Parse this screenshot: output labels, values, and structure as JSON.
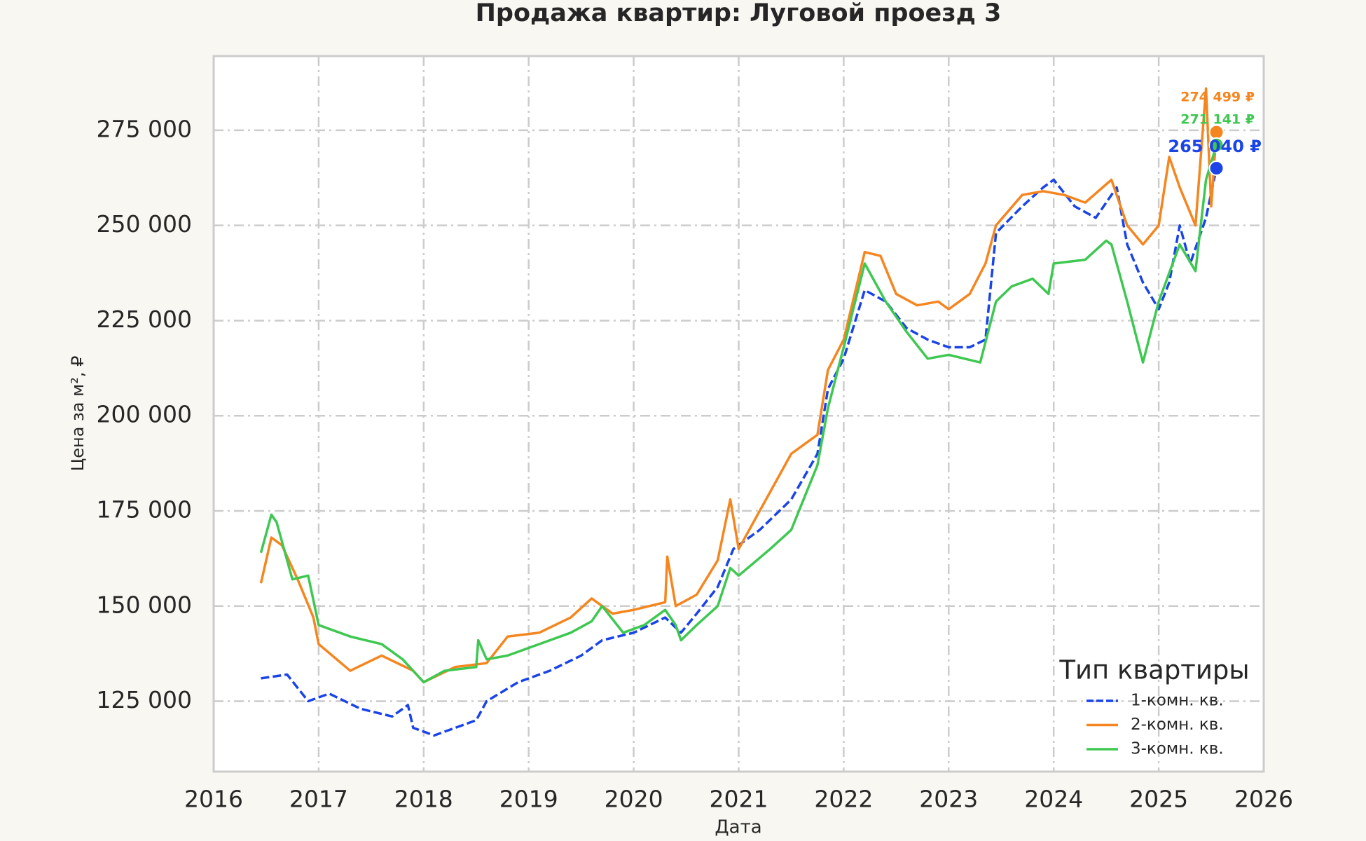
{
  "chart_data": {
    "type": "line",
    "title": "Продажа квартир: Луговой проезд 3",
    "x_label": "Дата",
    "y_label": "Цена за м², ₽",
    "xlim": [
      2016,
      2026
    ],
    "xticks": [
      2016,
      2017,
      2018,
      2019,
      2020,
      2021,
      2022,
      2023,
      2024,
      2025,
      2026
    ],
    "ylim": [
      106500,
      294500
    ],
    "yticks": [
      {
        "value": 125000,
        "label": "125 000"
      },
      {
        "value": 150000,
        "label": "150 000"
      },
      {
        "value": 175000,
        "label": "175 000"
      },
      {
        "value": 200000,
        "label": "200 000"
      },
      {
        "value": 225000,
        "label": "225 000"
      },
      {
        "value": 250000,
        "label": "250 000"
      },
      {
        "value": 275000,
        "label": "275 000"
      }
    ],
    "grid": true,
    "legend_title": "Тип квартиры",
    "legend_position": "lower right",
    "series": [
      {
        "name": "1-комн. кв.",
        "color": "#1a44e8",
        "linestyle": "dashed",
        "x": [
          2016.45,
          2016.7,
          2016.9,
          2017.1,
          2017.4,
          2017.7,
          2017.85,
          2017.9,
          2018.1,
          2018.3,
          2018.5,
          2018.6,
          2018.9,
          2019.2,
          2019.5,
          2019.7,
          2020.0,
          2020.3,
          2020.45,
          2020.6,
          2020.8,
          2020.95,
          2021.2,
          2021.5,
          2021.75,
          2021.85,
          2022.0,
          2022.2,
          2022.4,
          2022.6,
          2022.8,
          2023.0,
          2023.2,
          2023.35,
          2023.45,
          2023.7,
          2023.9,
          2024.0,
          2024.2,
          2024.4,
          2024.6,
          2024.7,
          2024.85,
          2025.0,
          2025.1,
          2025.2,
          2025.3,
          2025.45,
          2025.55
        ],
        "values": [
          131000,
          132000,
          125000,
          127000,
          123000,
          121000,
          124000,
          118000,
          116000,
          118000,
          120000,
          125000,
          130000,
          133000,
          137000,
          141000,
          143000,
          147000,
          143000,
          148000,
          155000,
          165000,
          170000,
          178000,
          190000,
          207000,
          215000,
          233000,
          230000,
          223000,
          220000,
          218000,
          218000,
          220000,
          248000,
          255000,
          260000,
          262000,
          255000,
          252000,
          260000,
          245000,
          235000,
          228000,
          235000,
          250000,
          240000,
          252000,
          265040
        ]
      },
      {
        "name": "2-комн. кв.",
        "color": "#f5861f",
        "linestyle": "solid",
        "x": [
          2016.45,
          2016.55,
          2016.65,
          2016.8,
          2016.95,
          2017.0,
          2017.3,
          2017.6,
          2017.9,
          2018.0,
          2018.3,
          2018.6,
          2018.8,
          2019.1,
          2019.4,
          2019.6,
          2019.8,
          2020.0,
          2020.3,
          2020.32,
          2020.4,
          2020.6,
          2020.8,
          2020.92,
          2021.0,
          2021.3,
          2021.5,
          2021.75,
          2021.85,
          2022.0,
          2022.2,
          2022.35,
          2022.5,
          2022.7,
          2022.9,
          2023.0,
          2023.2,
          2023.35,
          2023.45,
          2023.7,
          2023.9,
          2024.1,
          2024.3,
          2024.55,
          2024.7,
          2024.85,
          2025.0,
          2025.1,
          2025.2,
          2025.35,
          2025.45,
          2025.5,
          2025.55
        ],
        "values": [
          156000,
          168000,
          166000,
          157000,
          147000,
          140000,
          133000,
          137000,
          133000,
          130000,
          134000,
          135000,
          142000,
          143000,
          147000,
          152000,
          148000,
          149000,
          151000,
          163000,
          150000,
          153000,
          162000,
          178000,
          165000,
          180000,
          190000,
          195000,
          212000,
          220000,
          243000,
          242000,
          232000,
          229000,
          230000,
          228000,
          232000,
          240000,
          250000,
          258000,
          259000,
          258000,
          256000,
          262000,
          250000,
          245000,
          250000,
          268000,
          260000,
          250000,
          286000,
          255000,
          274499
        ]
      },
      {
        "name": "3-комн. кв.",
        "color": "#3ec851",
        "linestyle": "solid",
        "x": [
          2016.45,
          2016.55,
          2016.6,
          2016.75,
          2016.9,
          2017.0,
          2017.3,
          2017.6,
          2017.8,
          2018.0,
          2018.2,
          2018.5,
          2018.52,
          2018.6,
          2018.8,
          2019.1,
          2019.4,
          2019.6,
          2019.7,
          2019.9,
          2020.1,
          2020.3,
          2020.4,
          2020.45,
          2020.6,
          2020.8,
          2020.92,
          2021.0,
          2021.3,
          2021.5,
          2021.75,
          2021.85,
          2022.0,
          2022.2,
          2022.4,
          2022.6,
          2022.8,
          2023.0,
          2023.3,
          2023.45,
          2023.6,
          2023.8,
          2023.95,
          2024.0,
          2024.3,
          2024.5,
          2024.55,
          2024.7,
          2024.85,
          2025.0,
          2025.2,
          2025.35,
          2025.45,
          2025.55
        ],
        "values": [
          164000,
          174000,
          172000,
          157000,
          158000,
          145000,
          142000,
          140000,
          136000,
          130000,
          133000,
          134000,
          141000,
          136000,
          137000,
          140000,
          143000,
          146000,
          150000,
          143000,
          145000,
          149000,
          145000,
          141000,
          145000,
          150000,
          160000,
          158000,
          165000,
          170000,
          187000,
          202000,
          218000,
          240000,
          230000,
          222000,
          215000,
          216000,
          214000,
          230000,
          234000,
          236000,
          232000,
          240000,
          241000,
          246000,
          245000,
          230000,
          214000,
          230000,
          245000,
          238000,
          262000,
          271141
        ]
      }
    ],
    "annotations": [
      {
        "text": "274 499 ₽",
        "x": 2025.55,
        "y": 274499,
        "color": "#f5861f"
      },
      {
        "text": "271 141 ₽",
        "x": 2025.55,
        "y": 271141,
        "color": "#3ec851"
      },
      {
        "text": "265 040 ₽",
        "x": 2025.55,
        "y": 265040,
        "color": "#1a44e8"
      }
    ]
  }
}
